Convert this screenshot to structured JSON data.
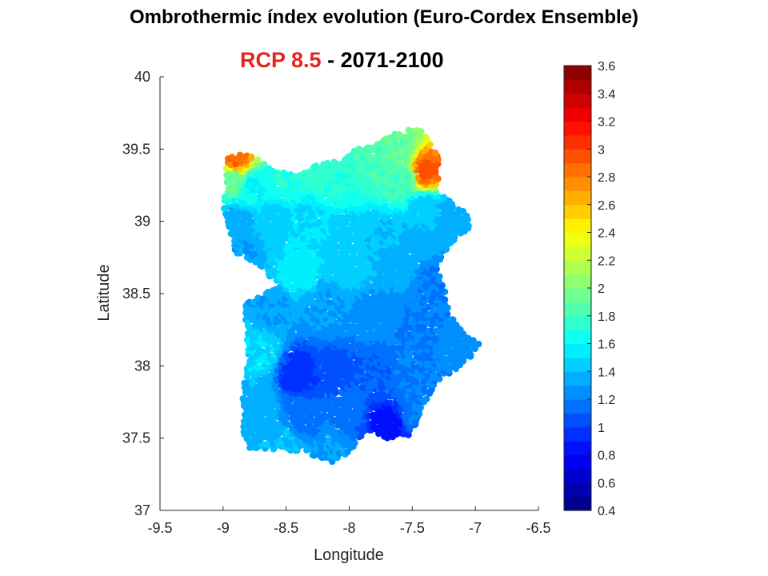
{
  "title": "Ombrothermic índex evolution (Euro-Cordex Ensemble)",
  "scenario": {
    "label": "RCP 8.5",
    "separator": " - ",
    "period": "2071-2100",
    "label_color": "#e3251d"
  },
  "chart_data": {
    "type": "scatter",
    "title": "Ombrothermic índex evolution (Euro-Cordex Ensemble)",
    "xlabel": "Longitude",
    "ylabel": "Latitude",
    "xlim": [
      -9.5,
      -6.5
    ],
    "ylim": [
      37,
      40
    ],
    "xticks": [
      "-9.5",
      "-9",
      "-8.5",
      "-8",
      "-7.5",
      "-7",
      "-6.5"
    ],
    "yticks": [
      "37",
      "37.5",
      "38",
      "38.5",
      "39",
      "39.5",
      "40"
    ],
    "grid": false,
    "colorbar": {
      "min": 0.4,
      "max": 3.6,
      "ticks": [
        "0.4",
        "0.6",
        "0.8",
        "1",
        "1.2",
        "1.4",
        "1.6",
        "1.8",
        "2",
        "2.2",
        "2.4",
        "2.6",
        "2.8",
        "3",
        "3.2",
        "3.4",
        "3.6"
      ],
      "colormap": "jet"
    },
    "regions": [
      {
        "lon": -8.9,
        "lat": 39.43,
        "value": 2.9
      },
      {
        "lon": -8.93,
        "lat": 39.3,
        "value": 1.9
      },
      {
        "lon": -8.75,
        "lat": 39.25,
        "value": 1.6
      },
      {
        "lon": -8.5,
        "lat": 39.3,
        "value": 1.7
      },
      {
        "lon": -8.25,
        "lat": 39.35,
        "value": 1.75
      },
      {
        "lon": -8.05,
        "lat": 39.25,
        "value": 1.7
      },
      {
        "lon": -7.8,
        "lat": 39.4,
        "value": 1.8
      },
      {
        "lon": -7.6,
        "lat": 39.5,
        "value": 1.9
      },
      {
        "lon": -7.55,
        "lat": 39.3,
        "value": 1.8
      },
      {
        "lon": -7.4,
        "lat": 39.35,
        "value": 2.95
      },
      {
        "lon": -7.4,
        "lat": 39.1,
        "value": 1.45
      },
      {
        "lon": -7.2,
        "lat": 39.05,
        "value": 1.35
      },
      {
        "lon": -8.9,
        "lat": 39.0,
        "value": 1.35
      },
      {
        "lon": -8.6,
        "lat": 39.0,
        "value": 1.45
      },
      {
        "lon": -8.3,
        "lat": 39.0,
        "value": 1.5
      },
      {
        "lon": -8.0,
        "lat": 38.95,
        "value": 1.45
      },
      {
        "lon": -7.7,
        "lat": 38.9,
        "value": 1.4
      },
      {
        "lon": -7.45,
        "lat": 38.85,
        "value": 1.35
      },
      {
        "lon": -8.85,
        "lat": 38.8,
        "value": 1.3
      },
      {
        "lon": -8.4,
        "lat": 38.65,
        "value": 1.55
      },
      {
        "lon": -8.0,
        "lat": 38.7,
        "value": 1.45
      },
      {
        "lon": -7.6,
        "lat": 38.7,
        "value": 1.35
      },
      {
        "lon": -7.35,
        "lat": 38.6,
        "value": 1.2
      },
      {
        "lon": -8.6,
        "lat": 38.4,
        "value": 1.3
      },
      {
        "lon": -8.2,
        "lat": 38.4,
        "value": 1.3
      },
      {
        "lon": -7.8,
        "lat": 38.35,
        "value": 1.25
      },
      {
        "lon": -7.4,
        "lat": 38.35,
        "value": 1.2
      },
      {
        "lon": -7.1,
        "lat": 38.2,
        "value": 1.25
      },
      {
        "lon": -8.7,
        "lat": 38.1,
        "value": 1.5
      },
      {
        "lon": -8.4,
        "lat": 37.95,
        "value": 0.95
      },
      {
        "lon": -8.1,
        "lat": 37.95,
        "value": 1.05
      },
      {
        "lon": -7.8,
        "lat": 37.95,
        "value": 1.1
      },
      {
        "lon": -7.5,
        "lat": 37.95,
        "value": 1.2
      },
      {
        "lon": -8.7,
        "lat": 37.7,
        "value": 1.35
      },
      {
        "lon": -8.35,
        "lat": 37.65,
        "value": 1.15
      },
      {
        "lon": -8.0,
        "lat": 37.7,
        "value": 1.15
      },
      {
        "lon": -7.7,
        "lat": 37.6,
        "value": 0.85
      },
      {
        "lon": -7.45,
        "lat": 37.7,
        "value": 1.2
      },
      {
        "lon": -8.5,
        "lat": 37.45,
        "value": 1.4
      },
      {
        "lon": -8.15,
        "lat": 37.42,
        "value": 1.3
      }
    ]
  }
}
